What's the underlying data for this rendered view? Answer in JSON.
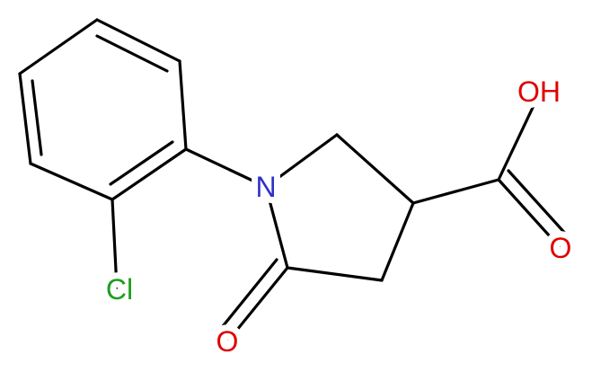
{
  "atoms": {
    "nitrogen": "N",
    "ketone_oxygen": "O",
    "hydroxyl": "OH",
    "acid_oxygen": "O",
    "chlorine": "Cl"
  }
}
